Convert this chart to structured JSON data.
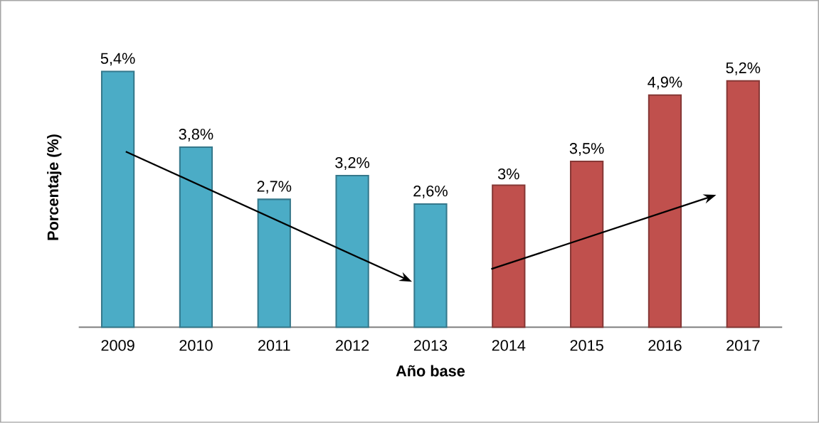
{
  "chart_data": {
    "type": "bar",
    "xlabel": "Año base",
    "ylabel": "Porcentaje (%)",
    "categories": [
      "2009",
      "2010",
      "2011",
      "2012",
      "2013",
      "2014",
      "2015",
      "2016",
      "2017"
    ],
    "values": [
      5.4,
      3.8,
      2.7,
      3.2,
      2.6,
      3,
      3.5,
      4.9,
      5.2
    ],
    "colors": [
      "#4bacc6",
      "#4bacc6",
      "#4bacc6",
      "#4bacc6",
      "#4bacc6",
      "#c0504d",
      "#c0504d",
      "#c0504d",
      "#c0504d"
    ],
    "value_labels": [
      "5,4%",
      "3,8%",
      "2,7%",
      "3,2%",
      "2,6%",
      "3%",
      "3,5%",
      "4,9%",
      "5,2%"
    ]
  }
}
